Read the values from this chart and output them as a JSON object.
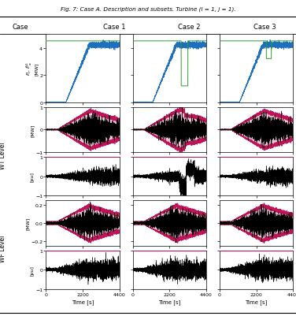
{
  "title": "Fig. 7: Case A. Description and subsets. Turbine (i = 1, j = 1).",
  "col_headers": [
    "Case 1",
    "Case 2",
    "Case 3"
  ],
  "row_label_left": "Case",
  "xlabel": "Time [s]",
  "t_end": 4400,
  "xticks": [
    0,
    2200,
    4400
  ],
  "ylim_row0": [
    0,
    5
  ],
  "yticks_row0": [
    0,
    2,
    4
  ],
  "ylim_wt_mw": [
    -1,
    1
  ],
  "yticks_wt_mw": [
    -1,
    0,
    1
  ],
  "ylim_wt_pu": [
    -1,
    1
  ],
  "yticks_wt_pu": [
    -1,
    0,
    1
  ],
  "ylim_wf_mw": [
    -0.25,
    0.25
  ],
  "yticks_wf_mw": [
    -0.2,
    0,
    0.2
  ],
  "ylim_wf_pu": [
    -1,
    1
  ],
  "yticks_wf_pu": [
    -1,
    0,
    1
  ],
  "color_blue": "#1f6fbf",
  "color_green": "#2ca02c",
  "color_red": "#c0135a",
  "color_black": "#000000",
  "background_color": "#ffffff",
  "figsize": [
    3.76,
    4.02
  ],
  "dpi": 100
}
